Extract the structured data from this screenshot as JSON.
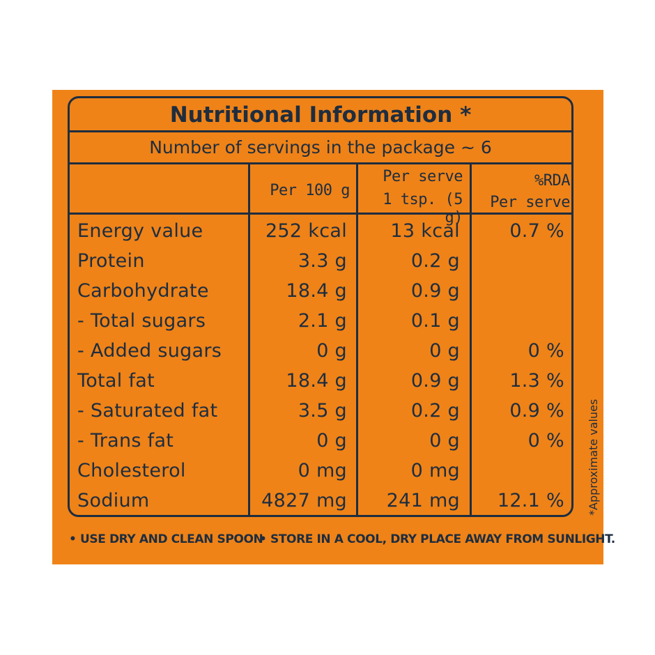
{
  "title": "Nutritional Information *",
  "servings": "Number of servings in the package ~ 6",
  "headers": {
    "per100_line1": "Per 100 g",
    "serve_line1": "Per serve",
    "serve_line2": "1 tsp. (5 g)",
    "rda_line1": "%RDA",
    "rda_line2": "Per serve"
  },
  "rows": [
    {
      "label": "Energy value",
      "per100": "252 kcal",
      "serve": "13 kcal",
      "rda": "0.7 %"
    },
    {
      "label": "Protein",
      "per100": "3.3 g",
      "serve": "0.2 g",
      "rda": ""
    },
    {
      "label": "Carbohydrate",
      "per100": "18.4 g",
      "serve": "0.9 g",
      "rda": ""
    },
    {
      "label": "- Total sugars",
      "per100": "2.1 g",
      "serve": "0.1 g",
      "rda": ""
    },
    {
      "label": "- Added sugars",
      "per100": "0 g",
      "serve": "0 g",
      "rda": "0 %"
    },
    {
      "label": "Total fat",
      "per100": "18.4 g",
      "serve": "0.9 g",
      "rda": "1.3 %"
    },
    {
      "label": "- Saturated fat",
      "per100": "3.5 g",
      "serve": "0.2 g",
      "rda": "0.9 %"
    },
    {
      "label": "- Trans fat",
      "per100": "0 g",
      "serve": "0 g",
      "rda": "0 %"
    },
    {
      "label": "Cholesterol",
      "per100": "0 mg",
      "serve": "0 mg",
      "rda": ""
    },
    {
      "label": "Sodium",
      "per100": "4827 mg",
      "serve": "241 mg",
      "rda": "12.1 %"
    }
  ],
  "side_note": "*Approximate values",
  "footer": {
    "left": "• USE DRY AND CLEAN SPOON",
    "right": "• STORE IN A COOL, DRY PLACE AWAY FROM SUNLIGHT."
  },
  "colors": {
    "background": "#ef8318",
    "ink": "#1e2d3f"
  }
}
